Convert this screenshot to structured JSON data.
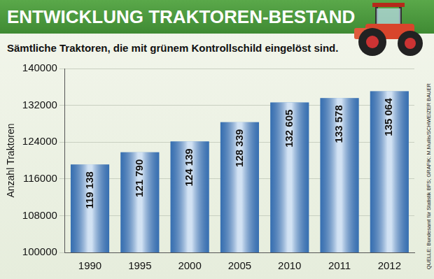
{
  "chart_data": {
    "type": "bar",
    "title": "ENTWICKLUNG TRAKTOREN-BESTAND",
    "subtitle": "Sämtliche Traktoren, die mit grünem Kontrollschild eingelöst sind.",
    "y_label": "Anzahl Traktoren",
    "source": "QUELLE: Bundesamt für Statistik BFS; GRAFIK: M.Mullis/SCHWEIZER BAUER",
    "categories": [
      "1990",
      "1995",
      "2000",
      "2005",
      "2010",
      "2011",
      "2012"
    ],
    "values": [
      119138,
      121790,
      124139,
      128339,
      132605,
      133578,
      135064
    ],
    "value_labels": [
      "119 138",
      "121 790",
      "124 139",
      "128 339",
      "132 605",
      "133 578",
      "135 064"
    ],
    "color": "#4a8bd0",
    "ylim": [
      100000,
      140000
    ],
    "yticks": [
      100000,
      108000,
      116000,
      124000,
      132000,
      140000
    ],
    "grid": true,
    "data_labels": true
  }
}
